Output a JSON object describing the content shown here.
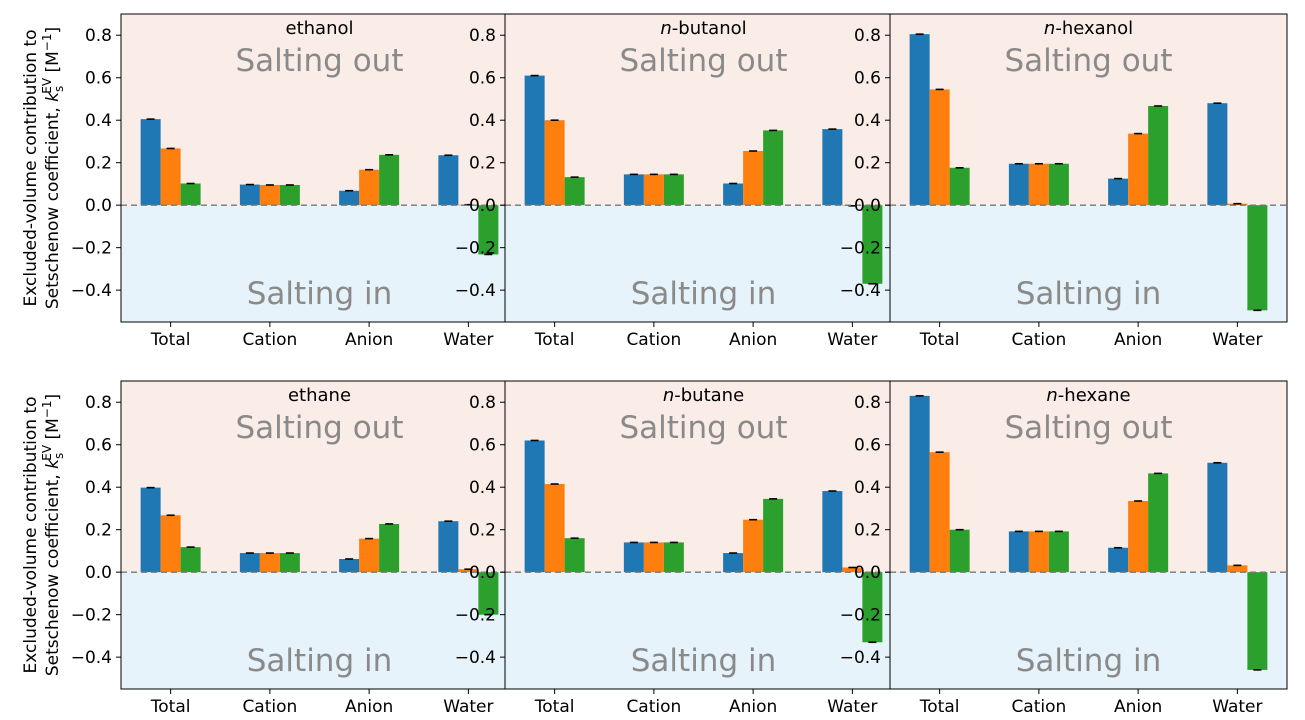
{
  "figure": {
    "ylabel_line1": "Excluded-volume contribution to",
    "ylabel_line2_prefix": "Setschenow coefficient, ",
    "ylabel_k": "k",
    "ylabel_sub": "s",
    "ylabel_sup": "EV",
    "ylabel_unit_open": " [M",
    "ylabel_unit_sup": "−1",
    "ylabel_unit_close": "]",
    "salting_out_label": "Salting out",
    "salting_in_label": "Salting in"
  },
  "colors": {
    "series": [
      "#1f77b4",
      "#ff7f0e",
      "#2ca02c"
    ],
    "salting_out_bg": "#faece6",
    "salting_in_bg": "#e6f3fa",
    "region_text": "#8a8a8a",
    "zero_line": "#777777"
  },
  "chart_data": [
    {
      "type": "bar",
      "title_prefix": "",
      "title_rest": "ethanol",
      "categories": [
        "Total",
        "Cation",
        "Anion",
        "Water"
      ],
      "series": [
        {
          "values": [
            0.405,
            0.097,
            0.068,
            0.235
          ]
        },
        {
          "values": [
            0.267,
            0.095,
            0.167,
            0.002
          ]
        },
        {
          "values": [
            0.102,
            0.095,
            0.237,
            -0.232
          ]
        }
      ],
      "ylim": [
        -0.55,
        0.9
      ],
      "yticks": [
        -0.4,
        -0.2,
        0.0,
        0.2,
        0.4,
        0.6,
        0.8
      ],
      "ytick_labels": [
        "−0.4",
        "−0.2",
        "0.0",
        "0.2",
        "0.4",
        "0.6",
        "0.8"
      ],
      "error_bars": true,
      "grid": false
    },
    {
      "type": "bar",
      "title_prefix": "n",
      "title_rest": "-butanol",
      "categories": [
        "Total",
        "Cation",
        "Anion",
        "Water"
      ],
      "series": [
        {
          "values": [
            0.61,
            0.145,
            0.102,
            0.358
          ]
        },
        {
          "values": [
            0.4,
            0.145,
            0.255,
            -0.003
          ]
        },
        {
          "values": [
            0.132,
            0.145,
            0.352,
            -0.37
          ]
        }
      ],
      "ylim": [
        -0.55,
        0.9
      ],
      "yticks": [
        -0.4,
        -0.2,
        0.0,
        0.2,
        0.4,
        0.6,
        0.8
      ],
      "ytick_labels": [
        "−0.4",
        "−0.2",
        "0.0",
        "0.2",
        "0.4",
        "0.6",
        "0.8"
      ],
      "error_bars": true,
      "grid": false
    },
    {
      "type": "bar",
      "title_prefix": "n",
      "title_rest": "-hexanol",
      "categories": [
        "Total",
        "Cation",
        "Anion",
        "Water"
      ],
      "series": [
        {
          "values": [
            0.805,
            0.195,
            0.125,
            0.48
          ]
        },
        {
          "values": [
            0.545,
            0.195,
            0.337,
            0.007
          ]
        },
        {
          "values": [
            0.176,
            0.195,
            0.467,
            -0.495
          ]
        }
      ],
      "ylim": [
        -0.55,
        0.9
      ],
      "yticks": [
        -0.4,
        -0.2,
        0.0,
        0.2,
        0.4,
        0.6,
        0.8
      ],
      "ytick_labels": [
        "−0.4",
        "−0.2",
        "0.0",
        "0.2",
        "0.4",
        "0.6",
        "0.8"
      ],
      "error_bars": true,
      "grid": false
    },
    {
      "type": "bar",
      "title_prefix": "",
      "title_rest": "ethane",
      "categories": [
        "Total",
        "Cation",
        "Anion",
        "Water"
      ],
      "series": [
        {
          "values": [
            0.398,
            0.09,
            0.062,
            0.24
          ]
        },
        {
          "values": [
            0.268,
            0.09,
            0.158,
            0.014
          ]
        },
        {
          "values": [
            0.118,
            0.09,
            0.227,
            -0.2
          ]
        }
      ],
      "ylim": [
        -0.55,
        0.9
      ],
      "yticks": [
        -0.4,
        -0.2,
        0.0,
        0.2,
        0.4,
        0.6,
        0.8
      ],
      "ytick_labels": [
        "−0.4",
        "−0.2",
        "0.0",
        "0.2",
        "0.4",
        "0.6",
        "0.8"
      ],
      "error_bars": true,
      "grid": false
    },
    {
      "type": "bar",
      "title_prefix": "n",
      "title_rest": "-butane",
      "categories": [
        "Total",
        "Cation",
        "Anion",
        "Water"
      ],
      "series": [
        {
          "values": [
            0.62,
            0.14,
            0.09,
            0.382
          ]
        },
        {
          "values": [
            0.415,
            0.14,
            0.247,
            0.022
          ]
        },
        {
          "values": [
            0.16,
            0.14,
            0.345,
            -0.33
          ]
        }
      ],
      "ylim": [
        -0.55,
        0.9
      ],
      "yticks": [
        -0.4,
        -0.2,
        0.0,
        0.2,
        0.4,
        0.6,
        0.8
      ],
      "ytick_labels": [
        "−0.4",
        "−0.2",
        "0.0",
        "0.2",
        "0.4",
        "0.6",
        "0.8"
      ],
      "error_bars": true,
      "grid": false
    },
    {
      "type": "bar",
      "title_prefix": "n",
      "title_rest": "-hexane",
      "categories": [
        "Total",
        "Cation",
        "Anion",
        "Water"
      ],
      "series": [
        {
          "values": [
            0.83,
            0.192,
            0.115,
            0.515
          ]
        },
        {
          "values": [
            0.565,
            0.192,
            0.335,
            0.032
          ]
        },
        {
          "values": [
            0.2,
            0.192,
            0.465,
            -0.46
          ]
        }
      ],
      "ylim": [
        -0.55,
        0.9
      ],
      "yticks": [
        -0.4,
        -0.2,
        0.0,
        0.2,
        0.4,
        0.6,
        0.8
      ],
      "ytick_labels": [
        "−0.4",
        "−0.2",
        "0.0",
        "0.2",
        "0.4",
        "0.6",
        "0.8"
      ],
      "error_bars": true,
      "grid": false
    }
  ]
}
